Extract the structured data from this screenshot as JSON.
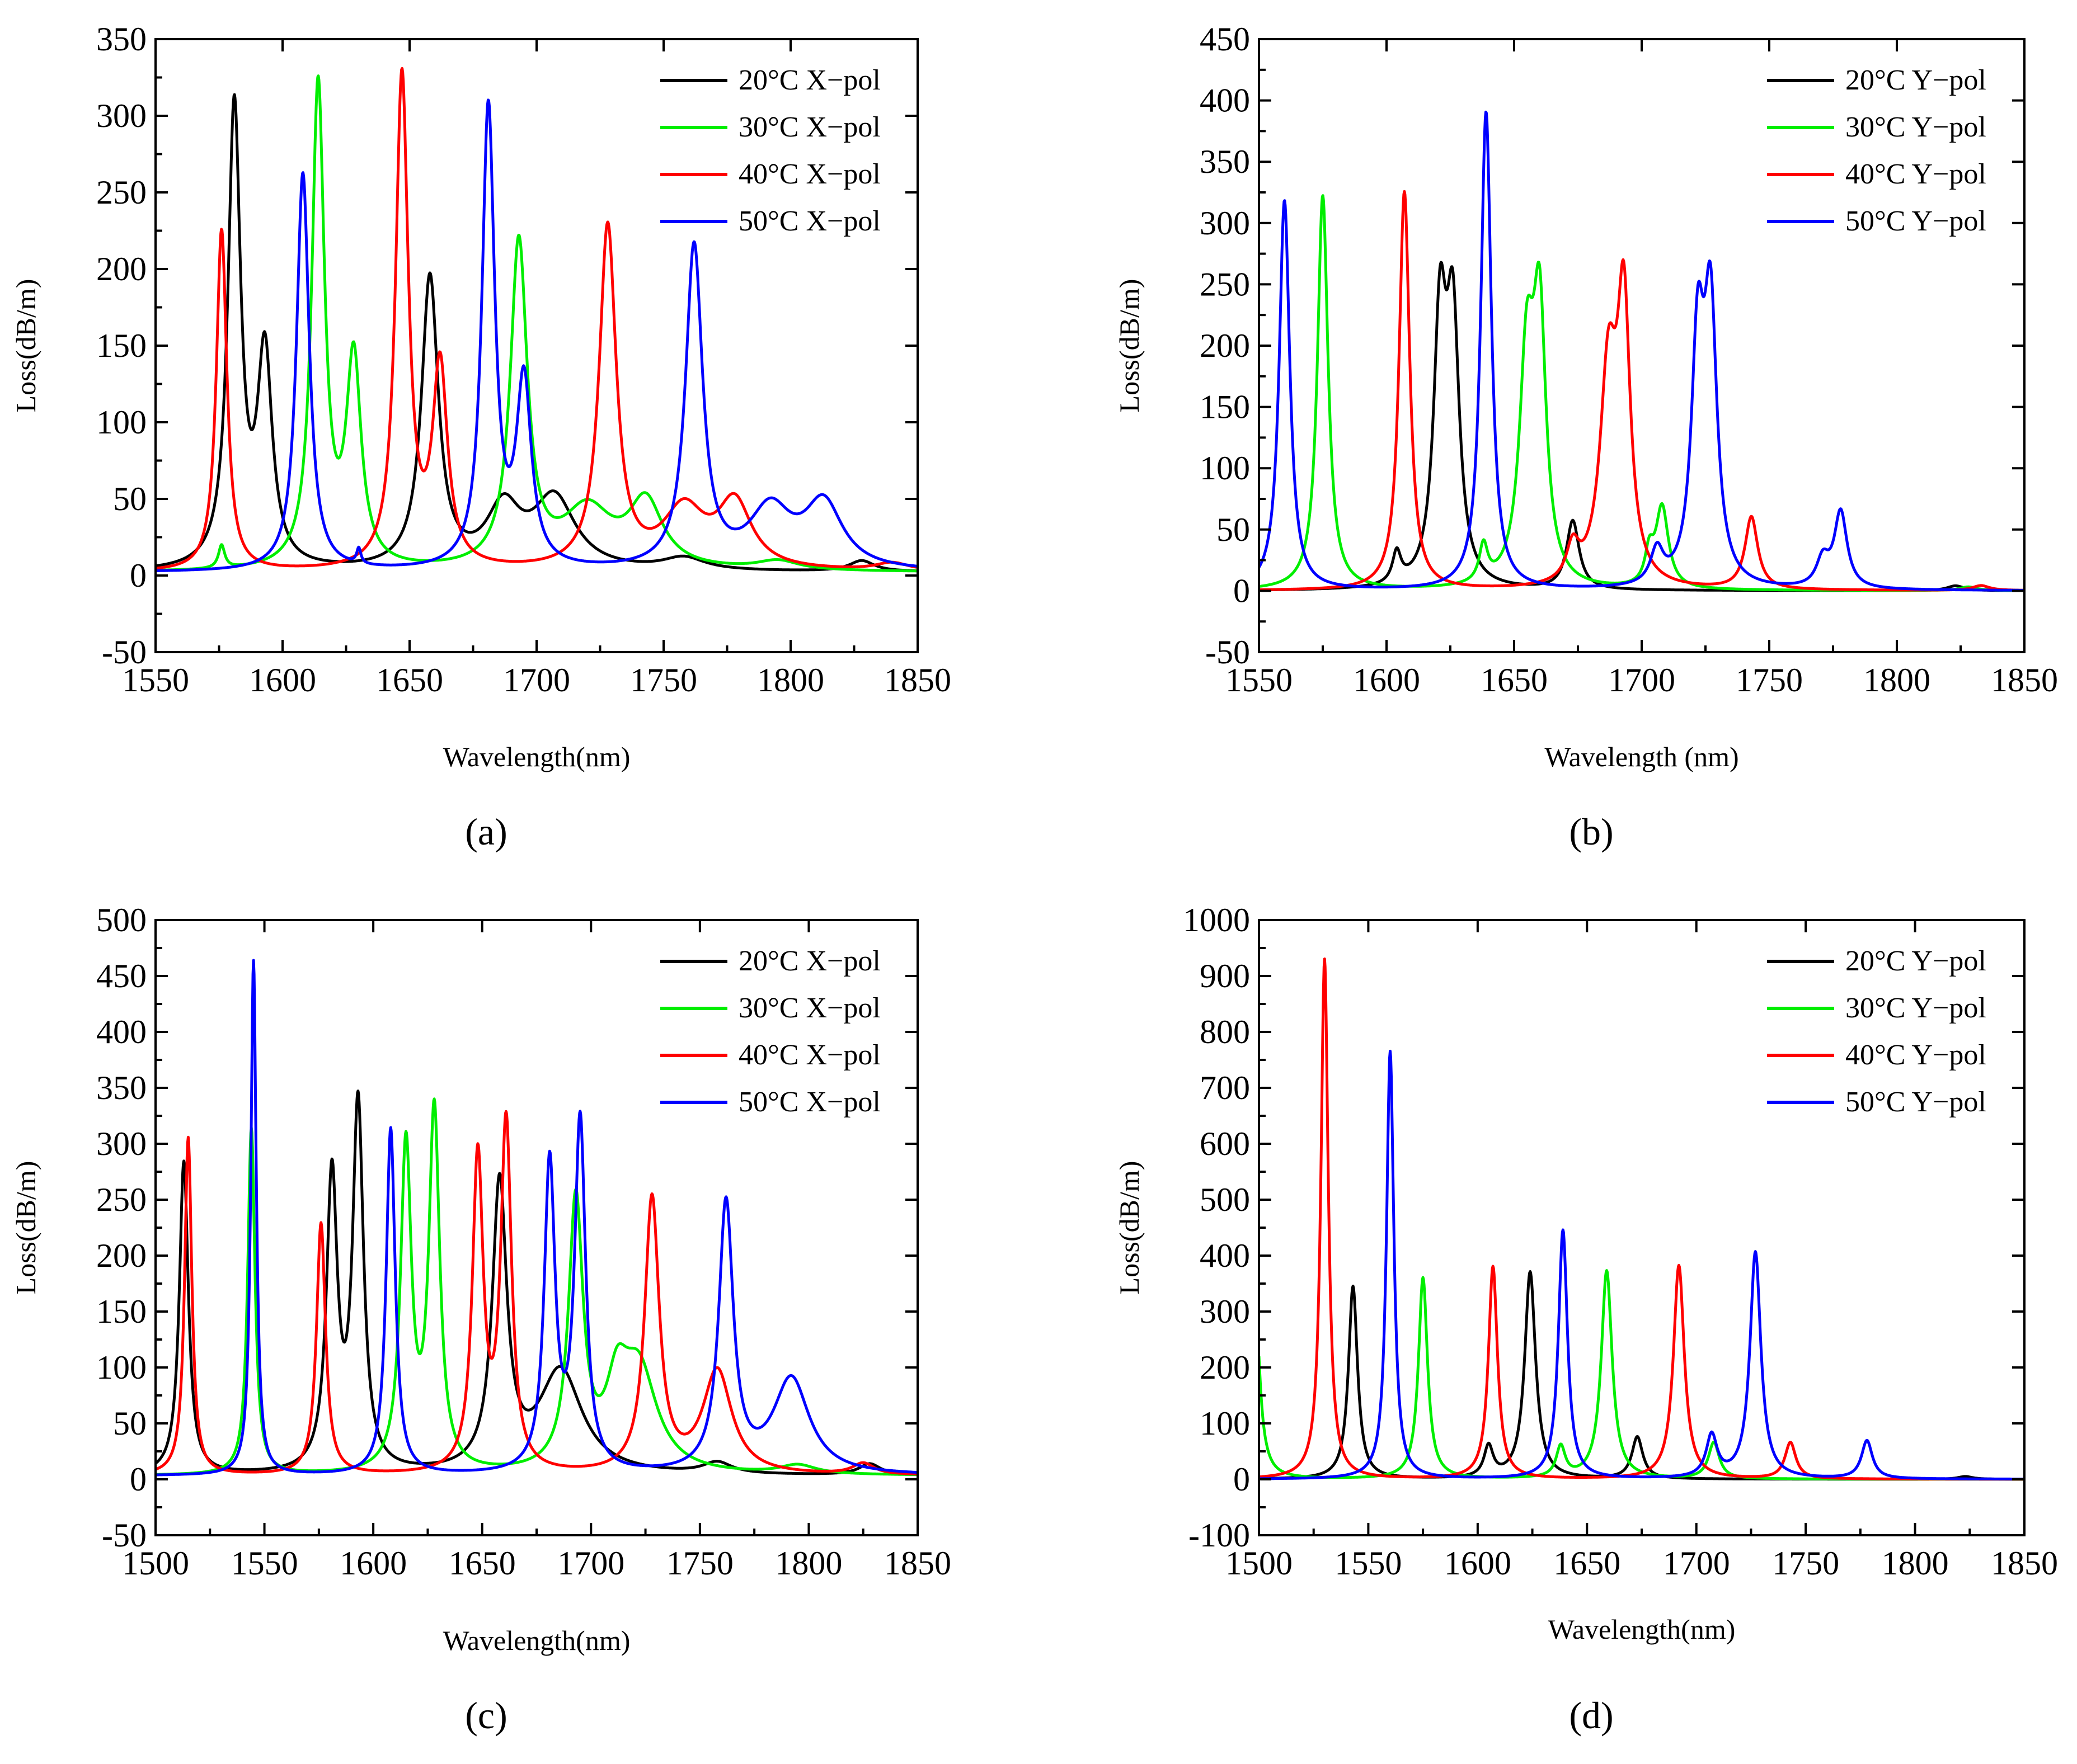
{
  "colors": {
    "black": "#000000",
    "green": "#00ee00",
    "red": "#ff0000",
    "blue": "#0000ff"
  },
  "chart_data": [
    {
      "id": "a",
      "type": "line",
      "panel_label": "(a)",
      "xlabel": "Wavelength(nm)",
      "ylabel": "Loss(dB/m)",
      "xlim": [
        1550,
        1850
      ],
      "ylim": [
        -50,
        350
      ],
      "xticks": [
        1550,
        1600,
        1650,
        1700,
        1750,
        1800,
        1850
      ],
      "yticks": [
        -50,
        0,
        50,
        100,
        150,
        200,
        250,
        300,
        350
      ],
      "legend_position": "top-right",
      "series": [
        {
          "name": "20°C X−pol",
          "color": "#000000",
          "baseline": 2,
          "peaks": [
            [
              1581,
              300,
              3
            ],
            [
              1593,
              138,
              3.5
            ],
            [
              1658,
              190,
              4
            ],
            [
              1687,
              38,
              8
            ],
            [
              1707,
              46,
              10
            ],
            [
              1758,
              8,
              10
            ],
            [
              1828,
              7,
              6
            ]
          ]
        },
        {
          "name": "30°C X−pol",
          "color": "#00ee00",
          "baseline": 2,
          "peaks": [
            [
              1576,
              15,
              1.5
            ],
            [
              1614,
              315,
              3
            ],
            [
              1628,
              135,
              3.5
            ],
            [
              1693,
              212,
              4
            ],
            [
              1720,
              38,
              12
            ],
            [
              1743,
              42,
              8
            ],
            [
              1795,
              6,
              10
            ]
          ]
        },
        {
          "name": "40°C X−pol",
          "color": "#ff0000",
          "baseline": 2,
          "peaks": [
            [
              1576,
              223,
              2.5
            ],
            [
              1647,
              321,
              3
            ],
            [
              1662,
              130,
              3.5
            ],
            [
              1728,
              223,
              4
            ],
            [
              1758,
              38,
              10
            ],
            [
              1778,
              42,
              8
            ],
            [
              1840,
              5,
              8
            ]
          ]
        },
        {
          "name": "50°C X−pol",
          "color": "#0000ff",
          "baseline": 2,
          "peaks": [
            [
              1608,
              260,
              3
            ],
            [
              1630,
              10,
              1
            ],
            [
              1681,
              300,
              3
            ],
            [
              1695,
              120,
              3.5
            ],
            [
              1762,
              210,
              4
            ],
            [
              1792,
              38,
              10
            ],
            [
              1813,
              42,
              9
            ]
          ]
        }
      ]
    },
    {
      "id": "b",
      "type": "line",
      "panel_label": "(b)",
      "xlabel": "Wavelength (nm)",
      "ylabel": "Loss(dB/m)",
      "xlim": [
        1550,
        1850
      ],
      "ylim": [
        -50,
        450
      ],
      "xticks": [
        1550,
        1600,
        1650,
        1700,
        1750,
        1800,
        1850
      ],
      "yticks": [
        -50,
        0,
        50,
        100,
        150,
        200,
        250,
        300,
        350,
        400,
        450
      ],
      "legend_position": "top-right",
      "series": [
        {
          "name": "20°C Y−pol",
          "color": "#000000",
          "baseline": 0,
          "peaks": [
            [
              1604,
              25,
              2
            ],
            [
              1621,
              210,
              3
            ],
            [
              1626,
              205,
              3
            ],
            [
              1673,
              56,
              3
            ],
            [
              1823,
              4,
              4
            ]
          ]
        },
        {
          "name": "30°C Y−pol",
          "color": "#00ee00",
          "baseline": 0,
          "peaks": [
            [
              1575,
              322,
              2.5
            ],
            [
              1638,
              30,
              2
            ],
            [
              1655,
              180,
              3.5
            ],
            [
              1660,
              205,
              3
            ],
            [
              1703,
              25,
              2
            ],
            [
              1708,
              66,
              3
            ],
            [
              1828,
              3,
              4
            ]
          ]
        },
        {
          "name": "40°C Y−pol",
          "color": "#ff0000",
          "baseline": 0,
          "peaks": [
            [
              1607,
              325,
              2.5
            ],
            [
              1673,
              28,
              3
            ],
            [
              1687,
              170,
              4
            ],
            [
              1693,
              215,
              3
            ],
            [
              1743,
              59,
              3
            ],
            [
              1833,
              4,
              4
            ]
          ]
        },
        {
          "name": "50°C Y−pol",
          "color": "#0000ff",
          "baseline": 0,
          "peaks": [
            [
              1560,
              318,
              2.5
            ],
            [
              1639,
              390,
              2.5
            ],
            [
              1706,
              28,
              3
            ],
            [
              1722,
              190,
              3
            ],
            [
              1727,
              215,
              3
            ],
            [
              1771,
              22,
              3
            ],
            [
              1778,
              62,
              3
            ]
          ]
        }
      ]
    },
    {
      "id": "c",
      "type": "line",
      "panel_label": "(c)",
      "xlabel": "Wavelength(nm)",
      "ylabel": "Loss(dB/m)",
      "xlim": [
        1500,
        1850
      ],
      "ylim": [
        -50,
        500
      ],
      "xticks": [
        1500,
        1550,
        1600,
        1650,
        1700,
        1750,
        1800,
        1850
      ],
      "yticks": [
        -50,
        0,
        50,
        100,
        150,
        200,
        250,
        300,
        350,
        400,
        450,
        500
      ],
      "legend_position": "top-right",
      "series": [
        {
          "name": "20°C X−pol",
          "color": "#000000",
          "baseline": 3,
          "peaks": [
            [
              1513,
              280,
              2.5
            ],
            [
              1581,
              262,
              3
            ],
            [
              1593,
              326,
              3
            ],
            [
              1658,
              255,
              4
            ],
            [
              1686,
              92,
              12
            ],
            [
              1758,
              10,
              8
            ],
            [
              1828,
              10,
              6
            ]
          ]
        },
        {
          "name": "30°C X−pol",
          "color": "#00ee00",
          "baseline": 3,
          "peaks": [
            [
              1544,
              310,
              2
            ],
            [
              1615,
              290,
              3
            ],
            [
              1628,
              320,
              3
            ],
            [
              1693,
              240,
              4
            ],
            [
              1712,
              60,
              6
            ],
            [
              1722,
              90,
              10
            ],
            [
              1795,
              8,
              10
            ]
          ]
        },
        {
          "name": "40°C X−pol",
          "color": "#ff0000",
          "baseline": 3,
          "peaks": [
            [
              1515,
              302,
              2
            ],
            [
              1576,
              225,
              2.5
            ],
            [
              1648,
              280,
              3
            ],
            [
              1661,
              310,
              3
            ],
            [
              1728,
              245,
              4
            ],
            [
              1758,
              92,
              8
            ],
            [
              1825,
              10,
              6
            ]
          ]
        },
        {
          "name": "50°C X−pol",
          "color": "#0000ff",
          "baseline": 3,
          "peaks": [
            [
              1545,
              460,
              1.5
            ],
            [
              1608,
              310,
              2.5
            ],
            [
              1681,
              275,
              3
            ],
            [
              1695,
              312,
              3
            ],
            [
              1762,
              240,
              4
            ],
            [
              1792,
              85,
              10
            ]
          ]
        }
      ]
    },
    {
      "id": "d",
      "type": "line",
      "panel_label": "(d)",
      "xlabel": "Wavelength(nm)",
      "ylabel": "Loss(dB/m)",
      "xlim": [
        1500,
        1850
      ],
      "ylim": [
        -100,
        1000
      ],
      "xticks": [
        1500,
        1550,
        1600,
        1650,
        1700,
        1750,
        1800,
        1850
      ],
      "yticks": [
        -100,
        0,
        100,
        200,
        300,
        400,
        500,
        600,
        700,
        800,
        900,
        1000
      ],
      "legend_position": "top-right",
      "series": [
        {
          "name": "20°C Y−pol",
          "color": "#000000",
          "baseline": 0,
          "peaks": [
            [
              1543,
              345,
              2.5
            ],
            [
              1605,
              55,
              2.5
            ],
            [
              1624,
              370,
              3
            ],
            [
              1673,
              75,
              3
            ],
            [
              1823,
              5,
              4
            ]
          ]
        },
        {
          "name": "30°C Y−pol",
          "color": "#00ee00",
          "baseline": 0,
          "peaks": [
            [
              1498,
              360,
              2.5
            ],
            [
              1575,
              360,
              2.5
            ],
            [
              1638,
              55,
              2.5
            ],
            [
              1659,
              372,
              3
            ],
            [
              1708,
              65,
              3
            ]
          ]
        },
        {
          "name": "40°C Y−pol",
          "color": "#ff0000",
          "baseline": 0,
          "peaks": [
            [
              1530,
              930,
              2
            ],
            [
              1607,
              380,
              2.5
            ],
            [
              1692,
              382,
              3
            ],
            [
              1743,
              65,
              3
            ]
          ]
        },
        {
          "name": "50°C Y−pol",
          "color": "#0000ff",
          "baseline": 0,
          "peaks": [
            [
              1560,
              765,
              2
            ],
            [
              1639,
              445,
              2.5
            ],
            [
              1707,
              75,
              3
            ],
            [
              1727,
              405,
              3
            ],
            [
              1778,
              68,
              3
            ]
          ]
        }
      ]
    }
  ]
}
